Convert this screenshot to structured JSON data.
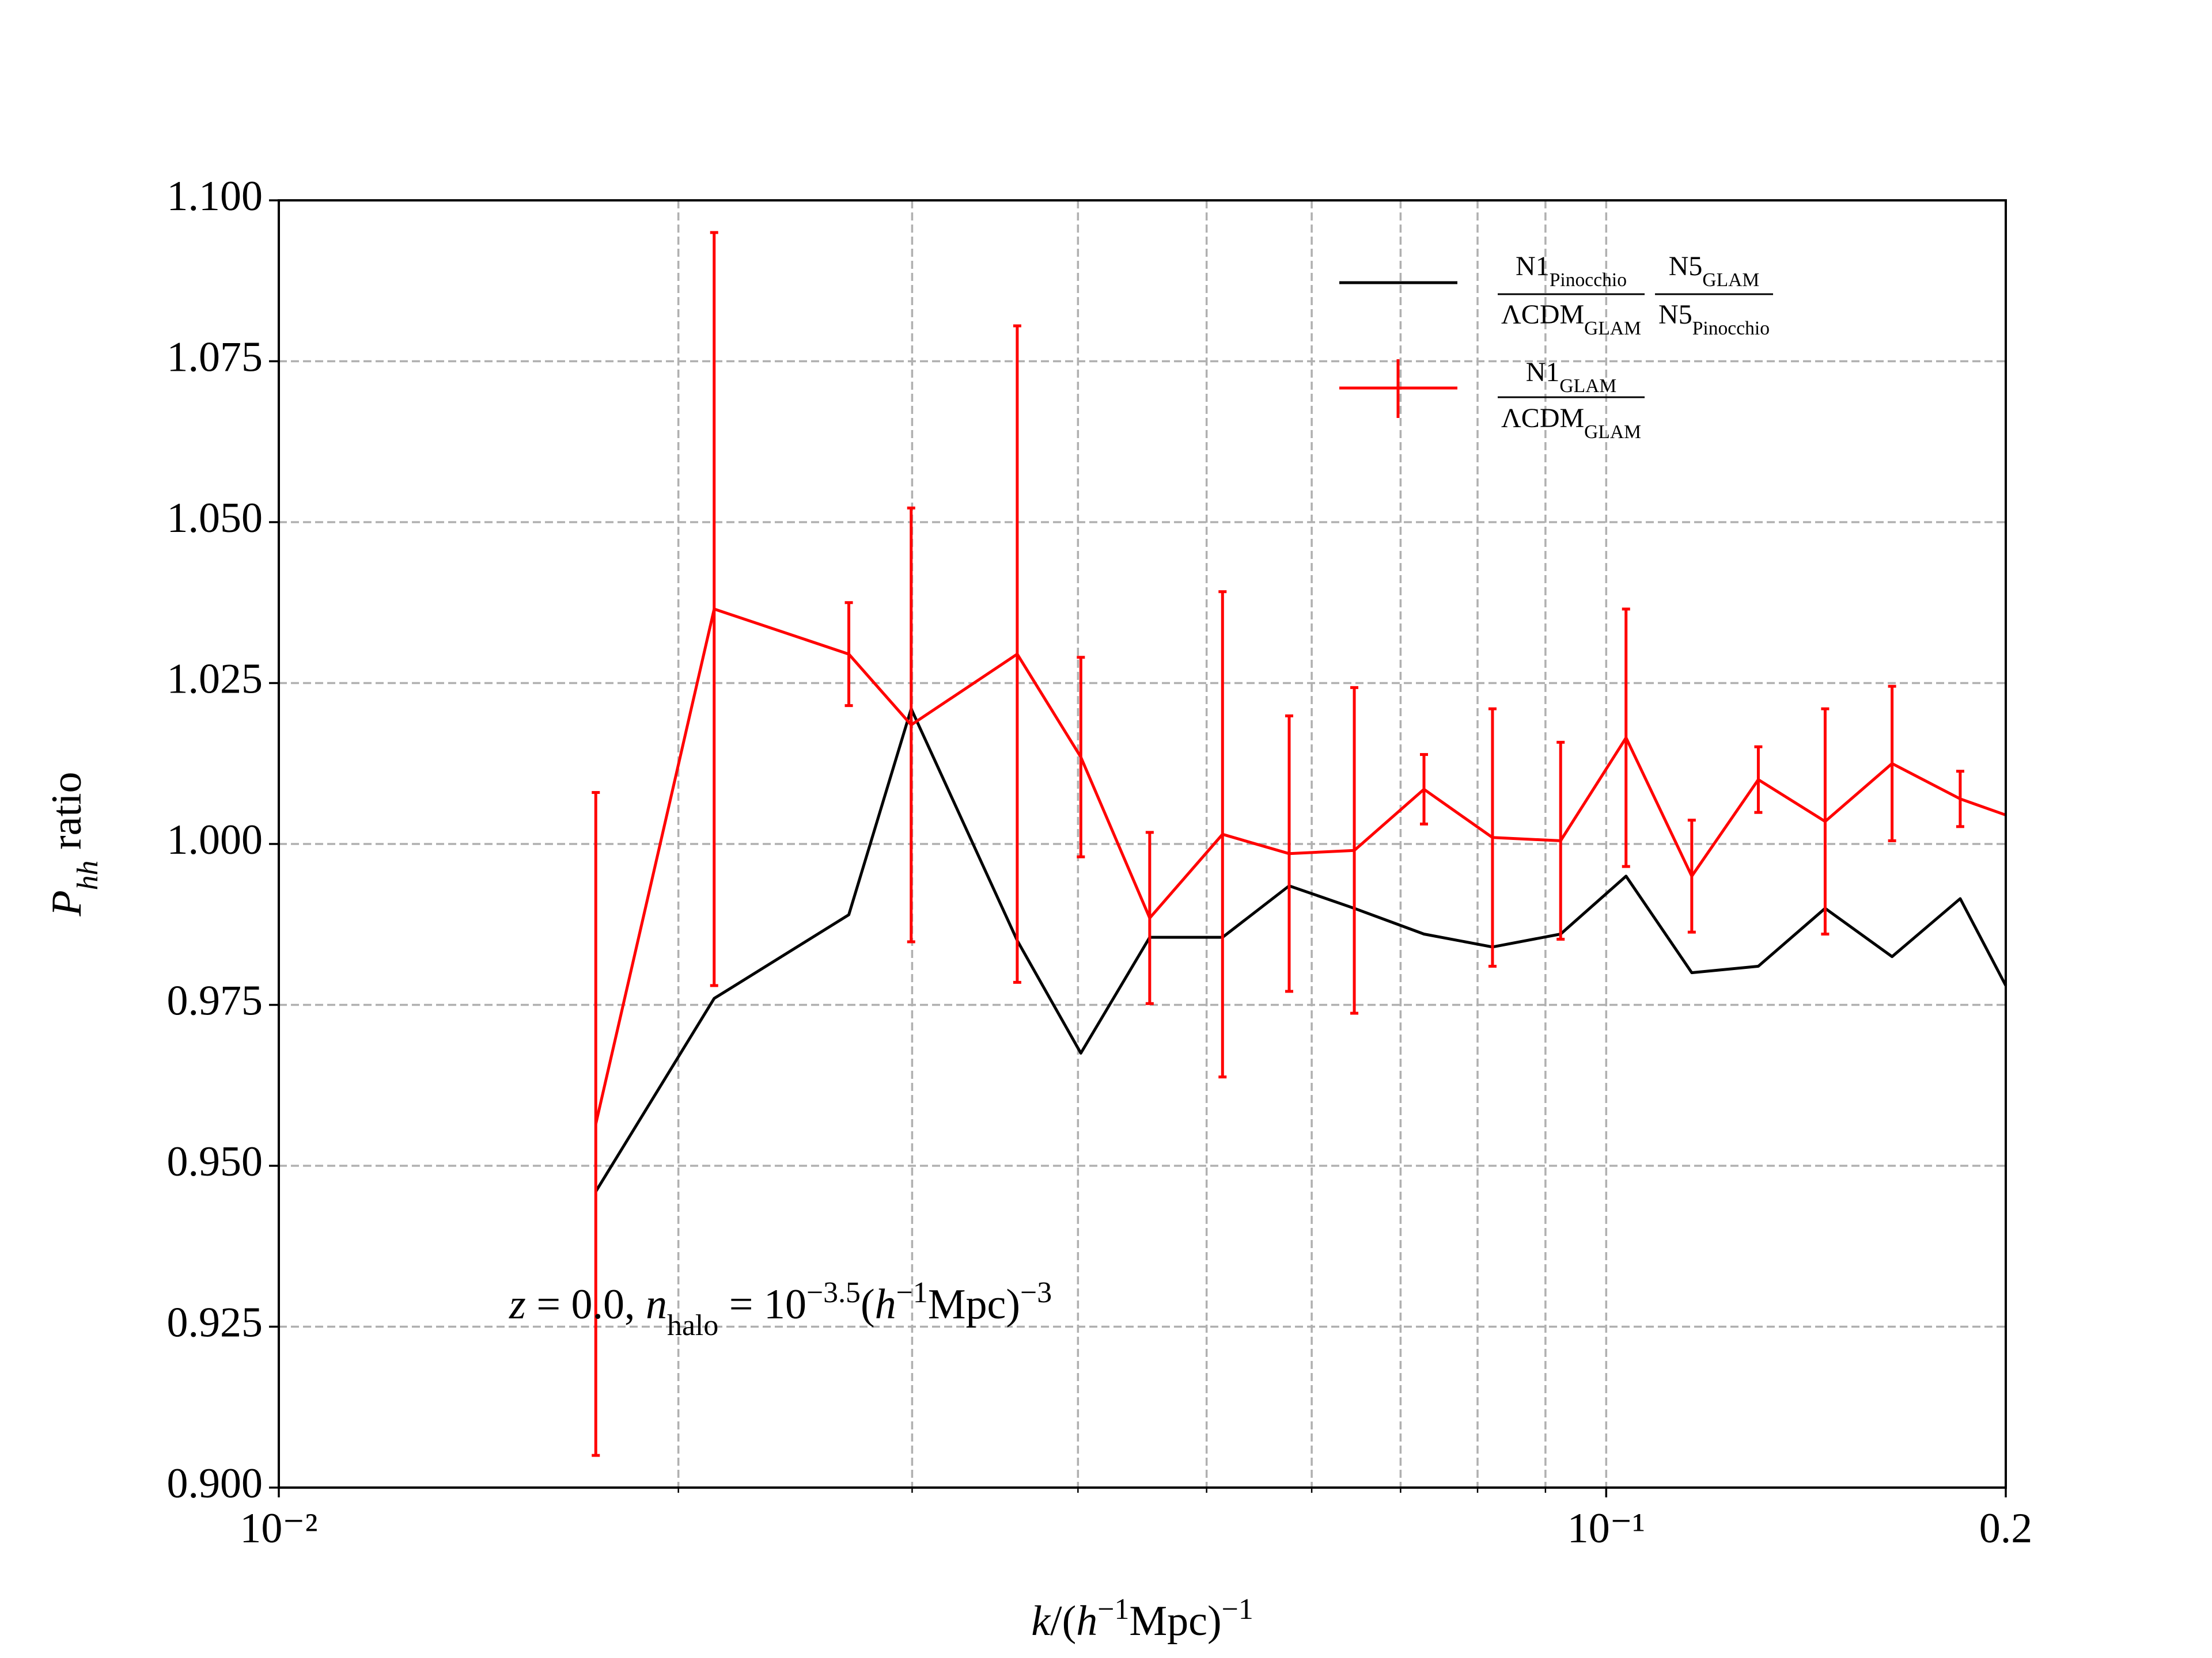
{
  "chart_data": {
    "type": "line",
    "xscale": "log",
    "xlim": [
      0.01,
      0.2
    ],
    "xticks": [
      {
        "value": 0.01,
        "label": "10⁻²"
      },
      {
        "value": 0.1,
        "label": "10⁻¹"
      },
      0.2
    ],
    "xminor_ticks": [
      0.02,
      0.03,
      0.04,
      0.05,
      0.06,
      0.07,
      0.08,
      0.09
    ],
    "ylim": [
      0.9,
      1.1
    ],
    "yticks": [
      {
        "value": 0.9,
        "label": "0.900"
      },
      {
        "value": 0.925,
        "label": "0.925"
      },
      {
        "value": 0.95,
        "label": "0.950"
      },
      {
        "value": 0.975,
        "label": "0.975"
      },
      {
        "value": 1.0,
        "label": "1.000"
      },
      {
        "value": 1.025,
        "label": "1.025"
      },
      {
        "value": 1.05,
        "label": "1.050"
      },
      {
        "value": 1.075,
        "label": "1.075"
      },
      {
        "value": 1.1,
        "label": "1.100"
      }
    ],
    "grid": true,
    "legend": "upper right",
    "x_label": [
      {
        "text": "k",
        "italic": true
      },
      {
        "text": "/("
      },
      {
        "text": "h",
        "italic": true
      },
      {
        "text": "−1",
        "sup": true
      },
      {
        "text": "Mpc)"
      },
      {
        "text": "−1",
        "sup": true
      }
    ],
    "y_label": [
      {
        "text": "P",
        "italic": true
      },
      {
        "text": "hh",
        "sub": true,
        "italic": true
      },
      {
        "text": "   ratio"
      }
    ],
    "annotation": [
      {
        "text": "z",
        "italic": true
      },
      {
        "text": " = 0.0, "
      },
      {
        "text": "n",
        "italic": true
      },
      {
        "text": "halo",
        "sub": true
      },
      {
        "text": " = 10"
      },
      {
        "text": "−3.5",
        "sup": true
      },
      {
        "text": "("
      },
      {
        "text": "h",
        "italic": true
      },
      {
        "text": "−1",
        "sup": true
      },
      {
        "text": "Mpc)"
      },
      {
        "text": "−3",
        "sup": true
      }
    ],
    "x": [
      0.01733,
      0.02128,
      0.02688,
      0.02995,
      0.036,
      0.0402,
      0.0453,
      0.0514,
      0.0577,
      0.0646,
      0.0729,
      0.0821,
      0.0924,
      0.1035,
      0.116,
      0.1302,
      0.1462,
      0.1642,
      0.1848,
      0.2
    ],
    "series": [
      {
        "legend_label": [
          {
            "num": "N1",
            "num_sub": "Pinocchio",
            "den": "ΛCDM",
            "den_sub": "GLAM"
          },
          {
            "num": "N5",
            "num_sub": "GLAM",
            "den": "N5",
            "den_sub": "Pinocchio"
          }
        ],
        "color": "#000000",
        "values": [
          0.946,
          0.976,
          0.989,
          1.021,
          0.985,
          0.9675,
          0.9855,
          0.9855,
          0.9935,
          0.99,
          0.986,
          0.984,
          0.986,
          0.995,
          0.98,
          0.981,
          0.99,
          0.9825,
          0.9915,
          0.978
        ]
      },
      {
        "legend_label": [
          {
            "num": "N1",
            "num_sub": "GLAM",
            "den": "ΛCDM",
            "den_sub": "GLAM"
          }
        ],
        "color": "#ff0000",
        "values": [
          0.9565,
          1.0365,
          1.0295,
          1.0185,
          1.0295,
          1.0135,
          0.9885,
          1.0015,
          0.9985,
          0.999,
          1.0085,
          1.001,
          1.0005,
          1.0165,
          0.995,
          1.01,
          1.0035,
          1.0125,
          1.007,
          1.0045
        ],
        "errors": [
          0.0515,
          0.0585,
          0.008,
          0.0337,
          0.051,
          0.0155,
          0.0133,
          0.0377,
          0.0214,
          0.0253,
          0.0054,
          0.02,
          0.0153,
          0.02,
          0.0087,
          0.0051,
          0.0175,
          0.012,
          0.0043,
          null
        ]
      }
    ]
  }
}
